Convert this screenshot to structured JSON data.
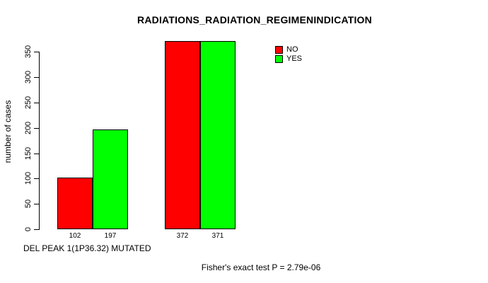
{
  "chart_data": {
    "type": "bar",
    "title": "RADIATIONS_RADIATION_REGIMENINDICATION",
    "ylabel": "number of cases",
    "xlabel": "DEL PEAK 1(1P36.32) MUTATED",
    "annotation": "Fisher's exact test P = 2.79e-06",
    "yticks": [
      0,
      50,
      100,
      150,
      200,
      250,
      300,
      350
    ],
    "ylim": [
      0,
      372
    ],
    "grid": false,
    "legend_position": "top-right",
    "series": [
      {
        "name": "NO",
        "color": "#ff0000",
        "values": [
          102,
          372
        ]
      },
      {
        "name": "YES",
        "color": "#00ff00",
        "values": [
          197,
          371
        ]
      }
    ],
    "bar_value_labels": [
      "102",
      "197",
      "372",
      "371"
    ]
  },
  "colors": {
    "no": "#ff0000",
    "yes": "#00ff00",
    "axis": "#000000",
    "background": "#ffffff"
  }
}
